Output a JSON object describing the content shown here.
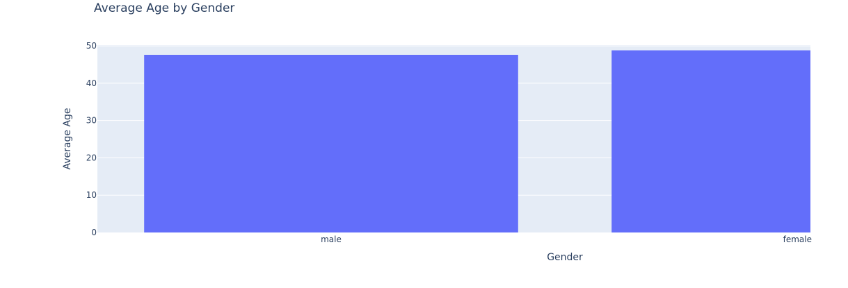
{
  "chart_data": {
    "type": "bar",
    "title": "Average Age by Gender",
    "xlabel": "Gender",
    "ylabel": "Average Age",
    "categories": [
      "male",
      "female"
    ],
    "values": [
      47.6,
      48.8
    ],
    "ylim": [
      0,
      50.2
    ],
    "yticks": [
      0,
      10,
      20,
      30,
      40,
      50
    ],
    "grid": true,
    "legend": "none",
    "colors": {
      "bar": "#636efa",
      "plot_background": "#e5ecf6",
      "gridline": "#ffffff",
      "text": "#2a3f5f"
    }
  }
}
